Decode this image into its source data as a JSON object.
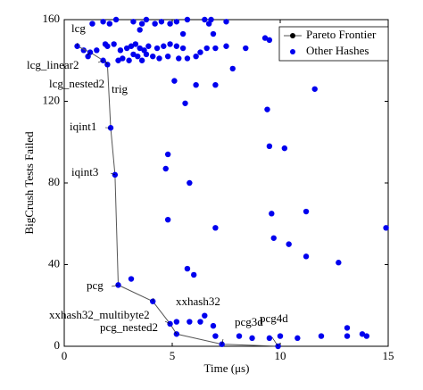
{
  "chart_data": {
    "type": "scatter",
    "xlabel": "Time (μs)",
    "ylabel": "BigCrush Tests Failed",
    "xlim": [
      0,
      15
    ],
    "ylim": [
      0,
      160
    ],
    "xticks": [
      0,
      5,
      10,
      15
    ],
    "yticks": [
      0,
      40,
      80,
      120,
      160
    ],
    "grid": false,
    "legend": "upper right",
    "series": [
      {
        "name": "Pareto Frontier",
        "color": "#000000",
        "line_color": "#555555",
        "x": [
          0.6,
          1.2,
          1.8,
          2.0,
          2.15,
          2.35,
          2.5,
          4.1,
          4.9,
          5.2,
          7.3,
          9.9
        ],
        "values": [
          147,
          144,
          140,
          138,
          107,
          84,
          30,
          22,
          11,
          6,
          1,
          0
        ],
        "point_labels": [
          "lcg",
          "lcg_linear2",
          "lcg_nested2",
          "trig",
          "iqint1",
          "iqint3",
          "pcg",
          "xxhash32",
          "xxhash32_multibyte2",
          "pcg_nested2",
          "pcg3d",
          "pcg4d"
        ]
      },
      {
        "name": "Other Hashes",
        "color": "#0000ee",
        "x": [
          1.3,
          1.8,
          2.1,
          2.4,
          3.2,
          3.6,
          3.8,
          4.2,
          4.5,
          4.9,
          5.2,
          5.7,
          6.5,
          6.7,
          6.8,
          7.5,
          3.5,
          5.5,
          6.9,
          9.3,
          9.5,
          0.9,
          1.5,
          1.9,
          2.0,
          2.3,
          2.6,
          2.9,
          3.1,
          3.3,
          3.2,
          3.4,
          3.5,
          3.7,
          3.9,
          4.3,
          4.1,
          4.6,
          4.9,
          5.2,
          5.5,
          5.7,
          6.1,
          6.3,
          6.6,
          7.0,
          7.5,
          2.7,
          3.0,
          3.6,
          4.4,
          4.8,
          5.3,
          3.8,
          1.1,
          2.5,
          8.4,
          7.8,
          10.5,
          5.1,
          6.1,
          7.0,
          5.6,
          9.4,
          11.6,
          9.5,
          10.2,
          4.8,
          4.7,
          5.8,
          4.8,
          7.0,
          9.6,
          11.2,
          9.7,
          10.4,
          11.2,
          12.7,
          14.9,
          5.7,
          6.0,
          3.1,
          5.2,
          6.5,
          6.9,
          7.0,
          8.1,
          10.0,
          10.8,
          11.9,
          13.1,
          13.1,
          13.8,
          14.0,
          6.3,
          5.8,
          8.7,
          9.5
        ],
        "values": [
          158,
          159,
          158,
          160,
          159,
          158,
          160,
          158,
          159,
          158,
          159,
          160,
          160,
          158,
          160,
          159,
          155,
          153,
          153,
          151,
          150,
          145,
          145,
          148,
          147,
          148,
          145,
          146,
          147,
          148,
          143,
          142,
          146,
          145,
          147,
          146,
          142,
          147,
          148,
          147,
          146,
          141,
          142,
          144,
          146,
          146,
          147,
          141,
          140,
          140,
          141,
          142,
          141,
          143,
          142,
          140,
          146,
          136,
          145,
          130,
          128,
          128,
          119,
          116,
          126,
          98,
          97,
          94,
          87,
          80,
          62,
          58,
          65,
          66,
          53,
          50,
          44,
          41,
          58,
          38,
          35,
          33,
          12,
          15,
          10,
          5,
          5,
          5,
          4,
          5,
          9,
          5,
          6,
          5,
          12,
          12,
          4,
          4
        ]
      }
    ]
  }
}
